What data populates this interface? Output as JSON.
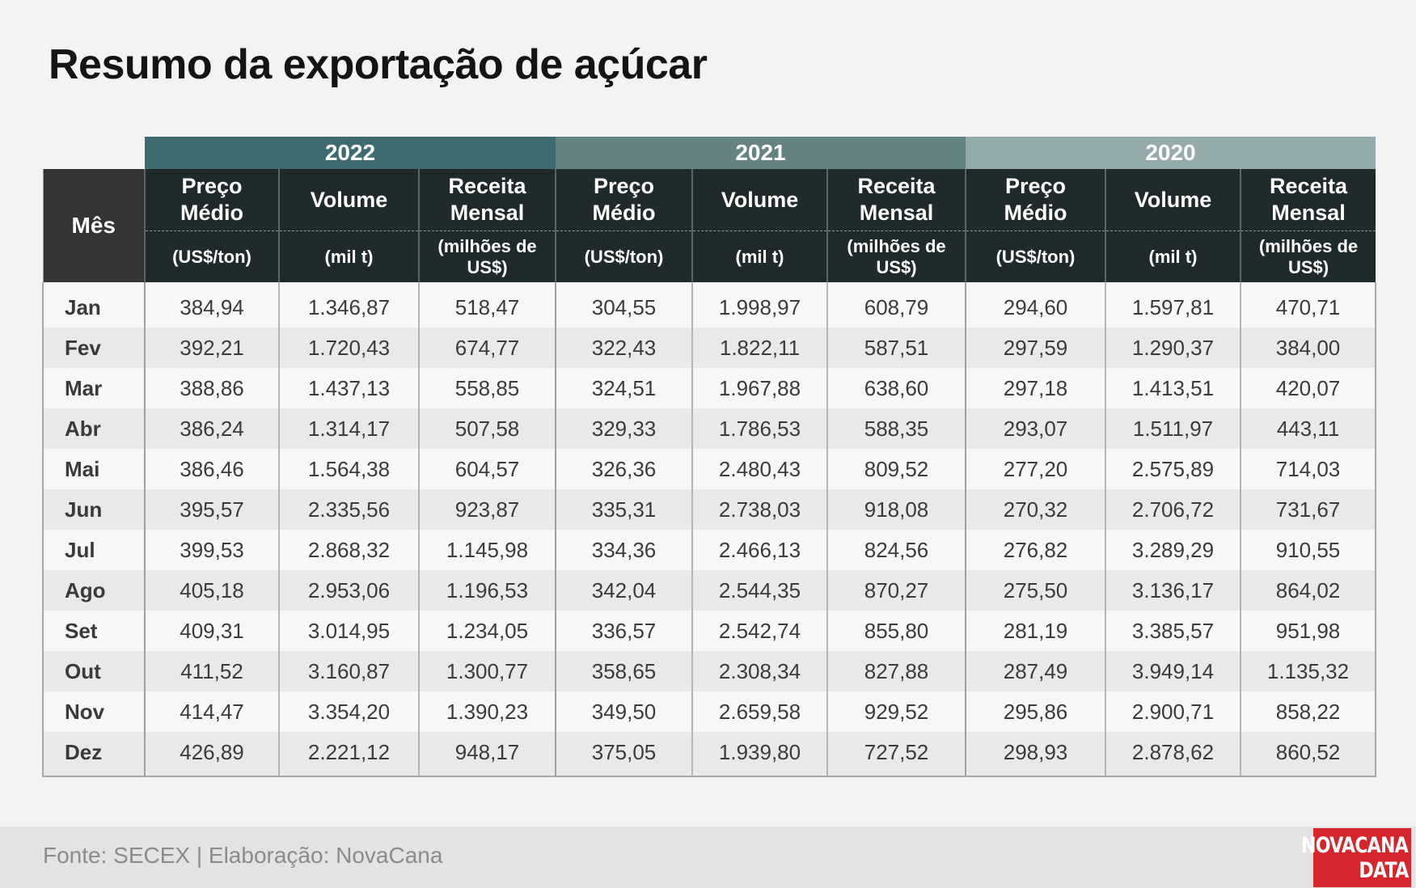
{
  "title": "Resumo da exportação de açúcar",
  "footer": {
    "source": "Fonte: SECEX | Elaboração: NovaCana"
  },
  "logo": {
    "line1": "NOVACANA",
    "line2": "DATA"
  },
  "colors": {
    "year_2022": "#3e6b70",
    "year_2021": "#668384",
    "year_2020": "#95aaab",
    "header_dark": "#1f2a2b",
    "logo_red": "#d7262b"
  },
  "chart_data": {
    "type": "table",
    "title": "Resumo da exportação de açúcar",
    "row_header": "Mês",
    "years": [
      "2022",
      "2021",
      "2020"
    ],
    "columns": [
      {
        "name": "Preço Médio",
        "unit": "(US$/ton)"
      },
      {
        "name": "Volume",
        "unit": "(mil t)"
      },
      {
        "name": "Receita Mensal",
        "unit": "(milhões de US$)"
      }
    ],
    "rows": [
      {
        "month": "Jan",
        "values": [
          "384,94",
          "1.346,87",
          "518,47",
          "304,55",
          "1.998,97",
          "608,79",
          "294,60",
          "1.597,81",
          "470,71"
        ]
      },
      {
        "month": "Fev",
        "values": [
          "392,21",
          "1.720,43",
          "674,77",
          "322,43",
          "1.822,11",
          "587,51",
          "297,59",
          "1.290,37",
          "384,00"
        ]
      },
      {
        "month": "Mar",
        "values": [
          "388,86",
          "1.437,13",
          "558,85",
          "324,51",
          "1.967,88",
          "638,60",
          "297,18",
          "1.413,51",
          "420,07"
        ]
      },
      {
        "month": "Abr",
        "values": [
          "386,24",
          "1.314,17",
          "507,58",
          "329,33",
          "1.786,53",
          "588,35",
          "293,07",
          "1.511,97",
          "443,11"
        ]
      },
      {
        "month": "Mai",
        "values": [
          "386,46",
          "1.564,38",
          "604,57",
          "326,36",
          "2.480,43",
          "809,52",
          "277,20",
          "2.575,89",
          "714,03"
        ]
      },
      {
        "month": "Jun",
        "values": [
          "395,57",
          "2.335,56",
          "923,87",
          "335,31",
          "2.738,03",
          "918,08",
          "270,32",
          "2.706,72",
          "731,67"
        ]
      },
      {
        "month": "Jul",
        "values": [
          "399,53",
          "2.868,32",
          "1.145,98",
          "334,36",
          "2.466,13",
          "824,56",
          "276,82",
          "3.289,29",
          "910,55"
        ]
      },
      {
        "month": "Ago",
        "values": [
          "405,18",
          "2.953,06",
          "1.196,53",
          "342,04",
          "2.544,35",
          "870,27",
          "275,50",
          "3.136,17",
          "864,02"
        ]
      },
      {
        "month": "Set",
        "values": [
          "409,31",
          "3.014,95",
          "1.234,05",
          "336,57",
          "2.542,74",
          "855,80",
          "281,19",
          "3.385,57",
          "951,98"
        ]
      },
      {
        "month": "Out",
        "values": [
          "411,52",
          "3.160,87",
          "1.300,77",
          "358,65",
          "2.308,34",
          "827,88",
          "287,49",
          "3.949,14",
          "1.135,32"
        ]
      },
      {
        "month": "Nov",
        "values": [
          "414,47",
          "3.354,20",
          "1.390,23",
          "349,50",
          "2.659,58",
          "929,52",
          "295,86",
          "2.900,71",
          "858,22"
        ]
      },
      {
        "month": "Dez",
        "values": [
          "426,89",
          "2.221,12",
          "948,17",
          "375,05",
          "1.939,80",
          "727,52",
          "298,93",
          "2.878,62",
          "860,52"
        ]
      }
    ]
  }
}
